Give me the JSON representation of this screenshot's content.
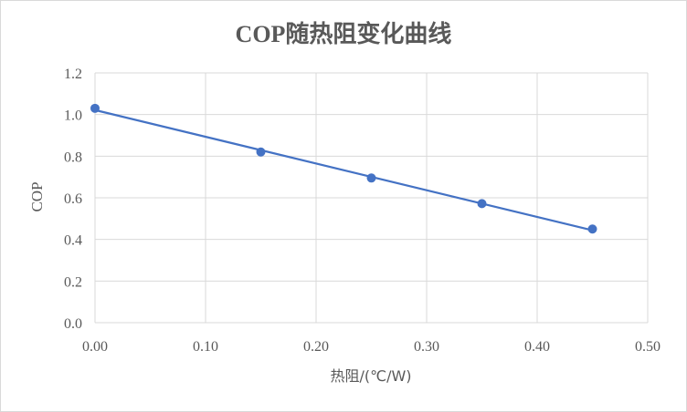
{
  "chart_data": {
    "type": "scatter",
    "title": "COP随热阻变化曲线",
    "xlabel": "热阻/(℃/W)",
    "ylabel": "COP",
    "xlim": [
      0,
      0.5
    ],
    "ylim": [
      0,
      1.2
    ],
    "x_ticks": [
      "0.00",
      "0.10",
      "0.20",
      "0.30",
      "0.40",
      "0.50"
    ],
    "y_ticks": [
      "0.0",
      "0.2",
      "0.4",
      "0.6",
      "0.8",
      "1.0",
      "1.2"
    ],
    "grid": true,
    "series": [
      {
        "x": [
          0.0,
          0.15,
          0.25,
          0.35,
          0.45
        ],
        "y": [
          1.03,
          0.82,
          0.695,
          0.572,
          0.45
        ],
        "marker": "circle",
        "trendline": "linear"
      }
    ],
    "colors": {
      "series": "#4472c4",
      "grid": "#d9d9d9",
      "text": "#595959"
    }
  }
}
